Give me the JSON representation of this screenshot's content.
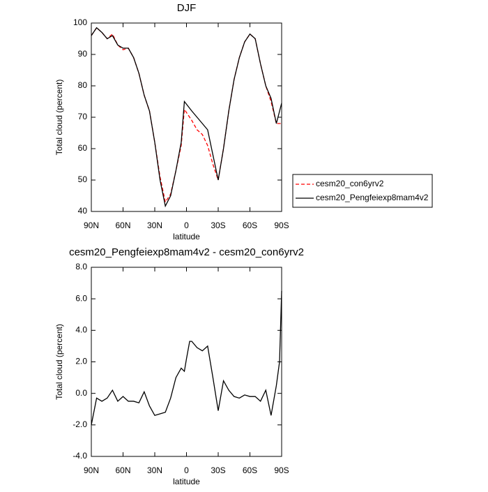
{
  "chart_data": [
    {
      "type": "line",
      "title": "DJF",
      "xlabel": "latitude",
      "ylabel": "Total cloud (percent)",
      "x": [
        90,
        85,
        80,
        75,
        70,
        65,
        60,
        55,
        50,
        45,
        40,
        35,
        30,
        25,
        20,
        15,
        10,
        5,
        2,
        -5,
        -10,
        -15,
        -20,
        -25,
        -30,
        -35,
        -40,
        -45,
        -50,
        -55,
        -60,
        -65,
        -70,
        -75,
        -80,
        -85,
        -90
      ],
      "xlim": [
        90,
        -90
      ],
      "xticks": [
        {
          "value": 90,
          "label": "90N"
        },
        {
          "value": 60,
          "label": "60N"
        },
        {
          "value": 30,
          "label": "30N"
        },
        0,
        {
          "value": -30,
          "label": "30S"
        },
        {
          "value": -60,
          "label": "60S"
        },
        {
          "value": -90,
          "label": "90S"
        }
      ],
      "ylim": [
        40,
        100
      ],
      "yticks": [
        40,
        50,
        60,
        70,
        80,
        90,
        100
      ],
      "legend": "right",
      "series": [
        {
          "name": "cesm20_con6yrv2",
          "color": "#ff0000",
          "style": "dashed",
          "values": [
            96,
            98.5,
            97,
            95,
            96.5,
            93,
            91.5,
            92,
            89,
            84,
            77,
            72,
            62,
            51,
            43,
            45.5,
            53,
            61,
            72.5,
            69,
            66,
            64.5,
            61,
            55,
            50,
            60,
            72,
            82,
            89,
            94,
            96.5,
            95,
            87,
            80,
            75,
            68,
            68
          ]
        },
        {
          "name": "cesm20_Pengfeiexp8mam4v2",
          "color": "#000000",
          "style": "solid",
          "values": [
            96,
            98.5,
            97,
            95,
            96,
            93,
            92,
            92,
            89,
            84,
            77,
            72,
            62,
            50,
            41.7,
            45,
            53,
            62,
            75,
            72,
            70,
            68,
            66,
            58,
            50,
            60,
            72,
            82,
            89,
            94,
            96.5,
            95,
            87,
            80,
            76,
            68,
            74.5
          ]
        }
      ]
    },
    {
      "type": "line",
      "title": "cesm20_Pengfeiexp8mam4v2 - cesm20_con6yrv2",
      "xlabel": "latitude",
      "ylabel": "Total cloud (percent)",
      "x": [
        90,
        85,
        80,
        75,
        70,
        65,
        60,
        55,
        50,
        45,
        40,
        35,
        30,
        25,
        20,
        15,
        10,
        5,
        2,
        0,
        -3,
        -5,
        -10,
        -15,
        -20,
        -25,
        -30,
        -35,
        -40,
        -45,
        -50,
        -55,
        -60,
        -65,
        -70,
        -75,
        -80,
        -85,
        -88,
        -90
      ],
      "xlim": [
        90,
        -90
      ],
      "xticks": [
        {
          "value": 90,
          "label": "90N"
        },
        {
          "value": 60,
          "label": "60N"
        },
        {
          "value": 30,
          "label": "30N"
        },
        0,
        {
          "value": -30,
          "label": "30S"
        },
        {
          "value": -60,
          "label": "60S"
        },
        {
          "value": -90,
          "label": "90S"
        }
      ],
      "ylim": [
        -4,
        8
      ],
      "yticks": [
        {
          "value": -4,
          "label": "-4.0"
        },
        {
          "value": -2,
          "label": "-2.0"
        },
        {
          "value": 0,
          "label": "0.0"
        },
        {
          "value": 2,
          "label": "2.0"
        },
        {
          "value": 4,
          "label": "4.0"
        },
        {
          "value": 6,
          "label": "6.0"
        },
        {
          "value": 8,
          "label": "8.0"
        }
      ],
      "series": [
        {
          "color": "#000000",
          "style": "solid",
          "values": [
            -2,
            -0.3,
            -0.5,
            -0.3,
            0.2,
            -0.5,
            -0.2,
            -0.5,
            -0.5,
            -0.6,
            0.1,
            -0.8,
            -1.4,
            -1.3,
            -1.2,
            -0.3,
            1.0,
            1.6,
            1.4,
            2.2,
            3.3,
            3.3,
            2.9,
            2.7,
            3.0,
            1.0,
            -1.1,
            0.8,
            0.2,
            -0.2,
            -0.3,
            -0.1,
            -0.2,
            -0.2,
            -0.5,
            0.2,
            -1.4,
            0.5,
            2.0,
            6.5
          ]
        }
      ]
    }
  ]
}
